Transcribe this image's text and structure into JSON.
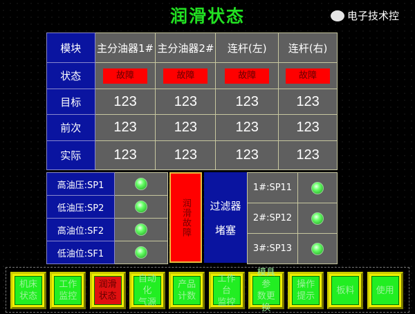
{
  "title": "润滑状态",
  "table": {
    "headers": [
      "模块",
      "主分油器1#",
      "主分油器2#",
      "连杆(左)",
      "连杆(右)"
    ],
    "status_label": "状态",
    "status": [
      "故障",
      "故障",
      "故障",
      "故障"
    ],
    "rows": [
      {
        "label": "目标",
        "values": [
          "123",
          "123",
          "123",
          "123"
        ]
      },
      {
        "label": "前次",
        "values": [
          "123",
          "123",
          "123",
          "123"
        ]
      },
      {
        "label": "实际",
        "values": [
          "123",
          "123",
          "123",
          "123"
        ]
      }
    ]
  },
  "sensors": [
    {
      "label": "高油压:SP1",
      "state": "on"
    },
    {
      "label": "低油压:SP2",
      "state": "on"
    },
    {
      "label": "高油位:SF2",
      "state": "on"
    },
    {
      "label": "低油位:SF1",
      "state": "on"
    }
  ],
  "lube_fault": "润滑故障",
  "filter": {
    "line1": "过滤器",
    "line2": "堵塞",
    "items": [
      {
        "label": "1#:SP11",
        "state": "on"
      },
      {
        "label": "2#:SP12",
        "state": "on"
      },
      {
        "label": "3#:SP13",
        "state": "on"
      }
    ]
  },
  "nav": [
    {
      "l1": "机床",
      "l2": "状态"
    },
    {
      "l1": "工作",
      "l2": "监控"
    },
    {
      "l1": "润滑",
      "l2": "状态",
      "active": true
    },
    {
      "l1": "自动化",
      "l2": "气源"
    },
    {
      "l1": "产品",
      "l2": "计数"
    },
    {
      "l1": "工作台",
      "l2": "监控"
    },
    {
      "l1": "模具参",
      "l2": "数更换"
    },
    {
      "l1": "操作",
      "l2": "提示"
    },
    {
      "l1": "板料",
      "l2": ""
    },
    {
      "l1": "使用",
      "l2": ""
    }
  ],
  "watermark": "电子技术控",
  "colors": {
    "title": "#22e022",
    "label_bg": "#0a14a0",
    "fault": "#ff0000",
    "led_on": "#66ff66",
    "button": "#22ee22",
    "button_active": "#e01010"
  }
}
